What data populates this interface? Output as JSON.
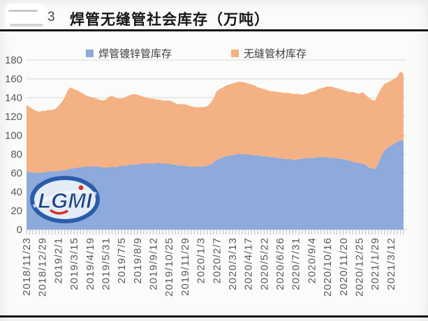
{
  "figure": {
    "corner_mark": "3",
    "title": "焊管无缝管社会库存（万吨）",
    "watermark": "LGMI"
  },
  "legend": [
    {
      "label": "焊管镀锌管库存",
      "color": "#8EA9DB"
    },
    {
      "label": "无缝管材库存",
      "color": "#F4B183"
    }
  ],
  "chart_data": {
    "type": "area",
    "stacked": true,
    "title": "焊管无缝管社会库存（万吨）",
    "unit": "万吨",
    "xlabel": "",
    "ylabel": "",
    "ylim": [
      0,
      180
    ],
    "yticks": [
      0,
      20,
      40,
      60,
      80,
      100,
      120,
      140,
      160,
      180
    ],
    "grid": "horizontal",
    "gridline_color": "#d9d9d9",
    "axis_text_color": "#595959",
    "legend_position": "top",
    "x_labels": [
      "2018/11/23",
      "2018/12/29",
      "2019/2/1",
      "2019/3/15",
      "2019/4/19",
      "2019/5/31",
      "2019/7/5",
      "2019/8/9",
      "2019/9/12",
      "2019/10/25",
      "2019/11/29",
      "2020/1/3",
      "2020/2/7",
      "2020/3/13",
      "2020/4/17",
      "2020/5/22",
      "2020/6/26",
      "2020/7/31",
      "2020/9/4",
      "2020/10/16",
      "2020/11/20",
      "2020/12/25",
      "2021/1/29",
      "2021/3/12"
    ],
    "label_every": 5,
    "n_points": 120,
    "series": [
      {
        "name": "焊管镀锌管库存",
        "color": "#8EA9DB",
        "values": [
          62,
          61,
          61,
          60,
          60,
          61,
          61,
          62,
          62,
          62,
          62,
          63,
          63,
          64,
          65,
          65,
          66,
          66,
          67,
          67,
          67,
          67,
          67,
          67,
          66,
          66,
          66,
          67,
          66,
          67,
          68,
          68,
          68,
          69,
          69,
          69,
          70,
          70,
          70,
          70,
          70,
          71,
          71,
          70,
          70,
          70,
          69,
          69,
          68,
          68,
          68,
          67,
          67,
          67,
          67,
          67,
          67,
          68,
          69,
          71,
          74,
          75,
          77,
          78,
          79,
          79,
          80,
          80,
          80,
          80,
          80,
          79,
          79,
          79,
          78,
          78,
          78,
          77,
          77,
          76,
          76,
          75,
          75,
          75,
          74,
          74,
          75,
          75,
          76,
          76,
          76,
          76,
          77,
          77,
          77,
          77,
          76,
          76,
          76,
          75,
          75,
          74,
          73,
          72,
          71,
          71,
          70,
          69,
          66,
          65,
          64,
          70,
          78,
          84,
          87,
          89,
          91,
          93,
          95,
          94
        ]
      },
      {
        "name": "无缝管材库存",
        "color": "#F4B183",
        "values": [
          70,
          69,
          67,
          66,
          65,
          65,
          65,
          65,
          65,
          66,
          69,
          72,
          77,
          84,
          86,
          84,
          82,
          80,
          77,
          75,
          74,
          73,
          72,
          71,
          71,
          72,
          75,
          75,
          74,
          72,
          71,
          72,
          74,
          74,
          75,
          74,
          72,
          71,
          70,
          69,
          69,
          67,
          67,
          67,
          67,
          67,
          67,
          65,
          65,
          65,
          65,
          65,
          64,
          63,
          63,
          63,
          63,
          63,
          65,
          68,
          73,
          74,
          74,
          75,
          75,
          76,
          76,
          77,
          77,
          76,
          75,
          75,
          74,
          72,
          72,
          71,
          70,
          70,
          70,
          70,
          70,
          70,
          70,
          70,
          70,
          70,
          69,
          68,
          68,
          69,
          70,
          71,
          72,
          73,
          74,
          75,
          76,
          75,
          74,
          74,
          73,
          73,
          73,
          74,
          74,
          73,
          76,
          74,
          74,
          73,
          73,
          74,
          72,
          71,
          69,
          69,
          69,
          69,
          73,
          71
        ]
      }
    ]
  }
}
